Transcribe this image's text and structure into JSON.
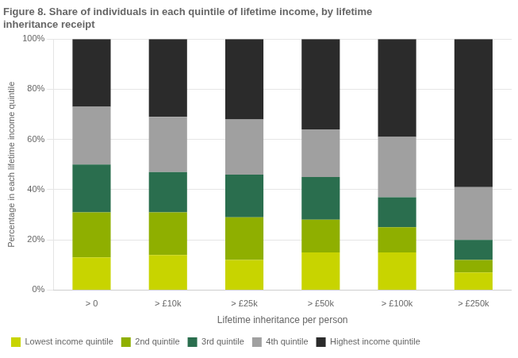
{
  "chart_data": {
    "type": "bar",
    "stacked": true,
    "title": [
      "Figure 8. Share of individuals in each quintile of lifetime income, by lifetime",
      "inheritance receipt"
    ],
    "x_label": "Lifetime inheritance per person",
    "y_label": "Percentage in each lifetime income quintile",
    "categories": [
      "> 0",
      "> £10k",
      "> £25k",
      "> £50k",
      "> £100k",
      "> £250k"
    ],
    "series": [
      {
        "name": "Lowest income quintile",
        "color": "#c8d400",
        "values": [
          13,
          14,
          12,
          15,
          15,
          7
        ]
      },
      {
        "name": "2nd quintile",
        "color": "#8faf00",
        "values": [
          18,
          17,
          17,
          13,
          10,
          5
        ]
      },
      {
        "name": "3rd quintile",
        "color": "#2a6e4e",
        "values": [
          19,
          16,
          17,
          17,
          12,
          8
        ]
      },
      {
        "name": "4th quintile",
        "color": "#a0a0a0",
        "values": [
          23,
          22,
          22,
          19,
          24,
          21
        ]
      },
      {
        "name": "Highest income quintile",
        "color": "#2b2b2b",
        "values": [
          27,
          31,
          32,
          36,
          39,
          59
        ]
      }
    ],
    "ylim": [
      0,
      100
    ],
    "yticks": [
      {
        "value": 0,
        "label": "0%"
      },
      {
        "value": 20,
        "label": "20%"
      },
      {
        "value": 40,
        "label": "40%"
      },
      {
        "value": 60,
        "label": "60%"
      },
      {
        "value": 80,
        "label": "80%"
      },
      {
        "value": 100,
        "label": "100%"
      }
    ],
    "grid": true,
    "legend": "lower left"
  }
}
